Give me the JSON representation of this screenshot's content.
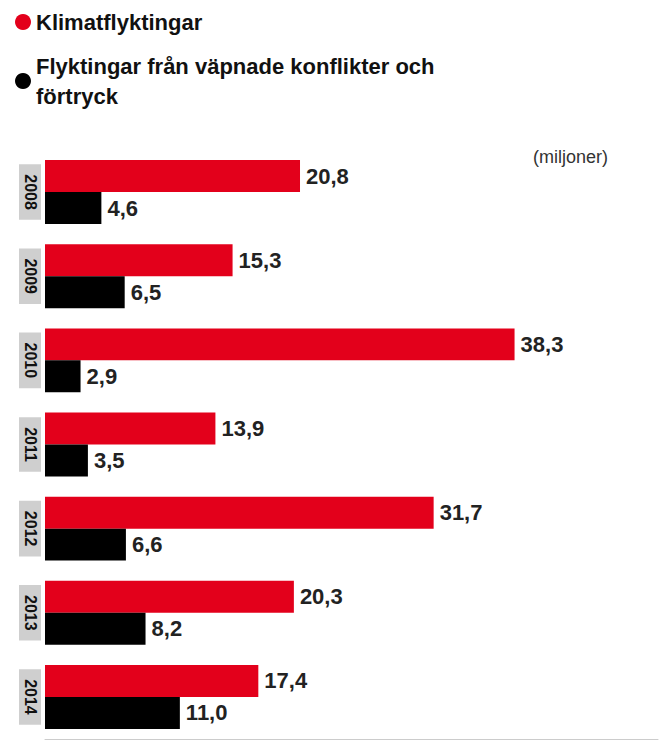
{
  "chart_data": {
    "type": "bar",
    "orientation": "horizontal",
    "categories": [
      "2008",
      "2009",
      "2010",
      "2011",
      "2012",
      "2013",
      "2014"
    ],
    "series": [
      {
        "name": "Klimatflyktingar",
        "color": "#e3001b",
        "values": [
          20.8,
          15.3,
          38.3,
          13.9,
          31.7,
          20.3,
          17.4
        ],
        "value_labels": [
          "20,8",
          "15,3",
          "38,3",
          "13,9",
          "31,7",
          "20,3",
          "17,4"
        ]
      },
      {
        "name": "Flyktingar från väpnade konflikter och förtryck",
        "color": "#000000",
        "values": [
          4.6,
          6.5,
          2.9,
          3.5,
          6.6,
          8.2,
          11.0
        ],
        "value_labels": [
          "4,6",
          "6,5",
          "2,9",
          "3,5",
          "6,6",
          "8,2",
          "11,0"
        ]
      }
    ],
    "xlim": [
      0,
      50
    ],
    "annotations": [
      "(miljoner)"
    ],
    "data_labels": true,
    "tick_labels": "y",
    "legend": "top-left",
    "grid": false
  }
}
